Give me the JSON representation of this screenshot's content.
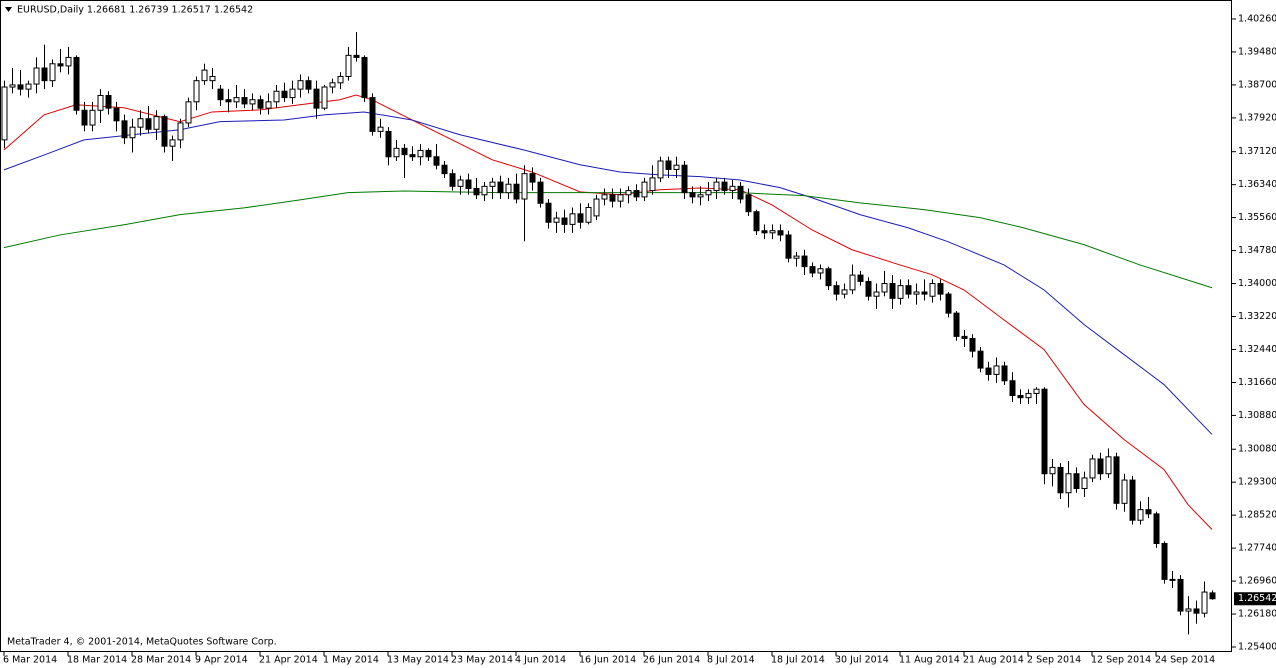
{
  "chart_data": {
    "type": "candlestick",
    "header": "EURUSD,Daily  1.26681 1.26739 1.26517 1.26542",
    "footer": "MetaTrader 4, © 2001-2014, MetaQuotes Software Corp.",
    "up_color": "#ffffff",
    "down_color": "#000000",
    "outline_color": "#000000",
    "categories": [
      "6 Mar 2014",
      null,
      null,
      null,
      null,
      null,
      null,
      null,
      "18 Mar 2014",
      null,
      null,
      null,
      null,
      null,
      null,
      null,
      "28 Mar 2014",
      null,
      null,
      null,
      null,
      null,
      null,
      null,
      "9 Apr 2014",
      null,
      null,
      null,
      null,
      null,
      null,
      null,
      "21 Apr 2014",
      null,
      null,
      null,
      null,
      null,
      null,
      null,
      "1 May 2014",
      null,
      null,
      null,
      null,
      null,
      null,
      null,
      "13 May 2014",
      null,
      null,
      null,
      null,
      null,
      null,
      null,
      "23 May 2014",
      null,
      null,
      null,
      null,
      null,
      null,
      null,
      "4 Jun 2014",
      null,
      null,
      null,
      null,
      null,
      null,
      null,
      "16 Jun 2014",
      null,
      null,
      null,
      null,
      null,
      null,
      null,
      "26 Jun 2014",
      null,
      null,
      null,
      null,
      null,
      null,
      null,
      "8 Jul 2014",
      null,
      null,
      null,
      null,
      null,
      null,
      null,
      "18 Jul 2014",
      null,
      null,
      null,
      null,
      null,
      null,
      null,
      "30 Jul 2014",
      null,
      null,
      null,
      null,
      null,
      null,
      null,
      "11 Aug 2014",
      null,
      null,
      null,
      null,
      null,
      null,
      null,
      "21 Aug 2014",
      null,
      null,
      null,
      null,
      null,
      null,
      null,
      "2 Sep 2014",
      null,
      null,
      null,
      null,
      null,
      null,
      null,
      "12 Sep 2014",
      null,
      null,
      null,
      null,
      null,
      null,
      null,
      "24 Sep 2014",
      null,
      null,
      null,
      null,
      null,
      null,
      null
    ],
    "open": [
      1.374,
      1.3865,
      1.387,
      1.386,
      1.3872,
      1.391,
      1.388,
      1.392,
      1.3915,
      1.3935,
      1.381,
      1.3775,
      1.381,
      1.3845,
      1.3815,
      1.3785,
      1.3745,
      1.377,
      1.379,
      1.3765,
      1.3795,
      1.3725,
      1.374,
      1.378,
      1.383,
      1.388,
      1.388,
      1.386,
      1.3835,
      1.383,
      1.384,
      1.3825,
      1.3835,
      1.3815,
      1.383,
      1.3855,
      1.384,
      1.386,
      1.388,
      1.386,
      1.3815,
      1.3865,
      1.3875,
      1.389,
      1.394,
      1.3935,
      1.384,
      1.376,
      1.376,
      1.37,
      1.372,
      1.3705,
      1.37,
      1.3715,
      1.37,
      1.368,
      1.366,
      1.363,
      1.3645,
      1.3625,
      1.361,
      1.363,
      1.364,
      1.3615,
      1.3635,
      1.36,
      1.366,
      1.364,
      1.359,
      1.3545,
      1.3555,
      1.354,
      1.3565,
      1.3545,
      1.356,
      1.36,
      1.361,
      1.3595,
      1.361,
      1.362,
      1.3605,
      1.362,
      1.365,
      1.369,
      1.367,
      1.368,
      1.3615,
      1.3605,
      1.361,
      1.362,
      1.364,
      1.362,
      1.363,
      1.361,
      1.357,
      1.3525,
      1.352,
      1.3525,
      1.3515,
      1.346,
      1.3465,
      1.344,
      1.3425,
      1.3435,
      1.3395,
      1.3375,
      1.3385,
      1.342,
      1.3405,
      1.337,
      1.338,
      1.34,
      1.3365,
      1.3395,
      1.3375,
      1.338,
      1.337,
      1.34,
      1.3375,
      1.333,
      1.3275,
      1.327,
      1.324,
      1.32,
      1.3185,
      1.3205,
      1.317,
      1.3135,
      1.313,
      1.314,
      1.315,
      1.295,
      1.2965,
      1.2905,
      1.295,
      1.2915,
      1.294,
      1.2985,
      1.295,
      1.299,
      1.288,
      1.2935,
      1.284,
      1.2865,
      1.2855,
      1.2785,
      1.27,
      1.27,
      1.2625,
      1.263,
      1.262,
      1.26681
    ],
    "high": [
      1.388,
      1.391,
      1.3905,
      1.388,
      1.3935,
      1.3965,
      1.393,
      1.3955,
      1.396,
      1.394,
      1.383,
      1.383,
      1.386,
      1.3855,
      1.383,
      1.38,
      1.379,
      1.381,
      1.382,
      1.381,
      1.38,
      1.375,
      1.379,
      1.384,
      1.389,
      1.392,
      1.391,
      1.387,
      1.386,
      1.387,
      1.386,
      1.385,
      1.3845,
      1.385,
      1.387,
      1.3875,
      1.388,
      1.3895,
      1.389,
      1.388,
      1.387,
      1.3885,
      1.39,
      1.396,
      1.3995,
      1.394,
      1.385,
      1.379,
      1.377,
      1.374,
      1.373,
      1.3725,
      1.373,
      1.372,
      1.373,
      1.369,
      1.367,
      1.3655,
      1.366,
      1.365,
      1.364,
      1.365,
      1.3655,
      1.365,
      1.366,
      1.368,
      1.3675,
      1.365,
      1.36,
      1.357,
      1.3575,
      1.358,
      1.359,
      1.359,
      1.361,
      1.3625,
      1.3625,
      1.3625,
      1.363,
      1.3635,
      1.365,
      1.368,
      1.37,
      1.37,
      1.37,
      1.369,
      1.363,
      1.363,
      1.364,
      1.365,
      1.365,
      1.3645,
      1.364,
      1.3625,
      1.3575,
      1.354,
      1.354,
      1.354,
      1.3525,
      1.3475,
      1.348,
      1.345,
      1.3445,
      1.344,
      1.3405,
      1.34,
      1.3445,
      1.343,
      1.3415,
      1.34,
      1.343,
      1.342,
      1.341,
      1.341,
      1.34,
      1.341,
      1.341,
      1.341,
      1.338,
      1.3335,
      1.329,
      1.328,
      1.325,
      1.3215,
      1.3225,
      1.3215,
      1.319,
      1.315,
      1.315,
      1.3155,
      1.3155,
      1.2985,
      1.2975,
      1.298,
      1.2965,
      1.2955,
      1.2995,
      1.3,
      1.301,
      1.3,
      1.295,
      1.2945,
      1.2885,
      1.2895,
      1.286,
      1.279,
      1.272,
      1.271,
      1.266,
      1.265,
      1.2695,
      1.26739
    ],
    "low": [
      1.372,
      1.385,
      1.3845,
      1.384,
      1.385,
      1.386,
      1.3865,
      1.39,
      1.3895,
      1.38,
      1.376,
      1.376,
      1.378,
      1.38,
      1.376,
      1.373,
      1.371,
      1.375,
      1.3755,
      1.374,
      1.371,
      1.369,
      1.372,
      1.377,
      1.381,
      1.387,
      1.386,
      1.382,
      1.3805,
      1.3815,
      1.3815,
      1.381,
      1.38,
      1.38,
      1.3815,
      1.383,
      1.3825,
      1.384,
      1.385,
      1.379,
      1.381,
      1.385,
      1.386,
      1.388,
      1.3925,
      1.383,
      1.375,
      1.3745,
      1.368,
      1.369,
      1.365,
      1.369,
      1.368,
      1.369,
      1.367,
      1.365,
      1.362,
      1.361,
      1.361,
      1.36,
      1.3595,
      1.36,
      1.36,
      1.36,
      1.359,
      1.35,
      1.362,
      1.358,
      1.353,
      1.352,
      1.352,
      1.352,
      1.353,
      1.354,
      1.355,
      1.3585,
      1.358,
      1.358,
      1.359,
      1.3595,
      1.3595,
      1.361,
      1.364,
      1.365,
      1.365,
      1.36,
      1.359,
      1.3585,
      1.3595,
      1.36,
      1.361,
      1.36,
      1.359,
      1.356,
      1.3515,
      1.3505,
      1.3505,
      1.35,
      1.345,
      1.344,
      1.342,
      1.3415,
      1.341,
      1.3385,
      1.336,
      1.3365,
      1.3375,
      1.3395,
      1.336,
      1.334,
      1.337,
      1.334,
      1.335,
      1.3365,
      1.335,
      1.336,
      1.3355,
      1.336,
      1.332,
      1.3265,
      1.325,
      1.3225,
      1.319,
      1.317,
      1.3165,
      1.316,
      1.312,
      1.3115,
      1.3115,
      1.3115,
      1.2925,
      1.292,
      1.289,
      1.287,
      1.2905,
      1.2895,
      1.293,
      1.2935,
      1.294,
      1.2865,
      1.286,
      1.283,
      1.283,
      1.2845,
      1.2775,
      1.269,
      1.268,
      1.2615,
      1.257,
      1.2595,
      1.261,
      1.26517
    ],
    "close": [
      1.3865,
      1.387,
      1.386,
      1.3872,
      1.391,
      1.388,
      1.392,
      1.3915,
      1.3935,
      1.381,
      1.3775,
      1.381,
      1.3845,
      1.3815,
      1.3785,
      1.3745,
      1.377,
      1.379,
      1.3765,
      1.3795,
      1.3725,
      1.374,
      1.378,
      1.383,
      1.388,
      1.3905,
      1.389,
      1.3835,
      1.383,
      1.384,
      1.3825,
      1.3835,
      1.3815,
      1.383,
      1.3855,
      1.384,
      1.386,
      1.388,
      1.386,
      1.3815,
      1.3865,
      1.3875,
      1.389,
      1.394,
      1.3935,
      1.384,
      1.376,
      1.377,
      1.37,
      1.372,
      1.3705,
      1.37,
      1.3715,
      1.37,
      1.368,
      1.366,
      1.363,
      1.3645,
      1.3625,
      1.361,
      1.363,
      1.364,
      1.3615,
      1.3635,
      1.36,
      1.366,
      1.364,
      1.359,
      1.3545,
      1.3555,
      1.354,
      1.3565,
      1.3545,
      1.358,
      1.36,
      1.361,
      1.3595,
      1.361,
      1.362,
      1.3605,
      1.364,
      1.365,
      1.369,
      1.367,
      1.368,
      1.3615,
      1.3605,
      1.361,
      1.362,
      1.364,
      1.362,
      1.363,
      1.36,
      1.357,
      1.3525,
      1.352,
      1.3525,
      1.3515,
      1.346,
      1.3465,
      1.344,
      1.3425,
      1.3435,
      1.3395,
      1.3375,
      1.3385,
      1.342,
      1.3405,
      1.337,
      1.338,
      1.34,
      1.3365,
      1.3395,
      1.3375,
      1.338,
      1.3375,
      1.34,
      1.3375,
      1.333,
      1.3275,
      1.327,
      1.324,
      1.32,
      1.3185,
      1.3205,
      1.317,
      1.3135,
      1.313,
      1.314,
      1.315,
      1.295,
      1.2965,
      1.2905,
      1.295,
      1.2915,
      1.294,
      1.2985,
      1.295,
      1.299,
      1.288,
      1.2935,
      1.284,
      1.2865,
      1.2855,
      1.2785,
      1.27,
      1.27,
      1.2625,
      1.263,
      1.262,
      1.267,
      1.26542
    ],
    "lines": [
      {
        "color": "#e00000",
        "x": [
          0,
          5,
          9,
          15,
          22,
          26,
          32,
          37,
          42,
          44,
          46,
          51,
          56,
          61,
          66,
          72,
          77,
          82,
          87,
          92,
          96,
          101,
          106,
          112,
          116,
          120,
          125,
          130,
          135,
          140,
          145,
          148,
          151
        ],
        "values": [
          1.3716,
          1.3799,
          1.3823,
          1.3816,
          1.3783,
          1.3806,
          1.3811,
          1.3823,
          1.3835,
          1.3846,
          1.3835,
          1.3787,
          1.374,
          1.3693,
          1.3664,
          1.3617,
          1.361,
          1.3622,
          1.3626,
          1.3622,
          1.3586,
          1.3527,
          1.348,
          1.3444,
          1.3421,
          1.3385,
          1.3314,
          1.3244,
          1.3114,
          1.3031,
          1.296,
          1.2877,
          1.2818
        ]
      },
      {
        "color": "#1c1cb8",
        "x": [
          0,
          5,
          10,
          16,
          22,
          27,
          35,
          40,
          45,
          51,
          57,
          65,
          72,
          77,
          82,
          87,
          92,
          97,
          101,
          107,
          113,
          118,
          125,
          130,
          135,
          140,
          145,
          151
        ],
        "values": [
          1.3669,
          1.3704,
          1.374,
          1.3752,
          1.3764,
          1.3783,
          1.3787,
          1.3799,
          1.3806,
          1.3787,
          1.3752,
          1.3716,
          1.3681,
          1.3664,
          1.3657,
          1.3653,
          1.3645,
          1.3627,
          1.3603,
          1.3563,
          1.3532,
          1.3499,
          1.3444,
          1.3385,
          1.3303,
          1.3232,
          1.3161,
          1.3043
        ]
      },
      {
        "color": "#007a00",
        "x": [
          0,
          7,
          15,
          22,
          30,
          37,
          43,
          50,
          56,
          62,
          70,
          77,
          85,
          92,
          100,
          107,
          115,
          122,
          127,
          135,
          142,
          151
        ],
        "values": [
          1.3485,
          1.3515,
          1.3539,
          1.3563,
          1.3579,
          1.3598,
          1.3615,
          1.3619,
          1.3617,
          1.3615,
          1.3615,
          1.3615,
          1.3615,
          1.3615,
          1.3608,
          1.3591,
          1.3575,
          1.3556,
          1.3534,
          1.3492,
          1.3444,
          1.339
        ]
      }
    ],
    "current_price": {
      "value": 1.26542,
      "label": "1.26542"
    },
    "ylim": [
      1.25282,
      1.40709
    ],
    "yticks": [
      {
        "value": 1.4026,
        "label": "1.40260"
      },
      {
        "value": 1.3948,
        "label": "1.39480"
      },
      {
        "value": 1.387,
        "label": "1.38700"
      },
      {
        "value": 1.3792,
        "label": "1.37920"
      },
      {
        "value": 1.3712,
        "label": "1.37120"
      },
      {
        "value": 1.3634,
        "label": "1.36340"
      },
      {
        "value": 1.3556,
        "label": "1.35560"
      },
      {
        "value": 1.3478,
        "label": "1.34780"
      },
      {
        "value": 1.34,
        "label": "1.34000"
      },
      {
        "value": 1.3322,
        "label": "1.33220"
      },
      {
        "value": 1.3244,
        "label": "1.32440"
      },
      {
        "value": 1.3166,
        "label": "1.31660"
      },
      {
        "value": 1.3088,
        "label": "1.30880"
      },
      {
        "value": 1.3008,
        "label": "1.30080"
      },
      {
        "value": 1.293,
        "label": "1.29300"
      },
      {
        "value": 1.2852,
        "label": "1.28520"
      },
      {
        "value": 1.2774,
        "label": "1.27740"
      },
      {
        "value": 1.2696,
        "label": "1.26960"
      },
      {
        "value": 1.2618,
        "label": "1.26180"
      },
      {
        "value": 1.254,
        "label": "1.25400"
      }
    ],
    "grid": false
  }
}
